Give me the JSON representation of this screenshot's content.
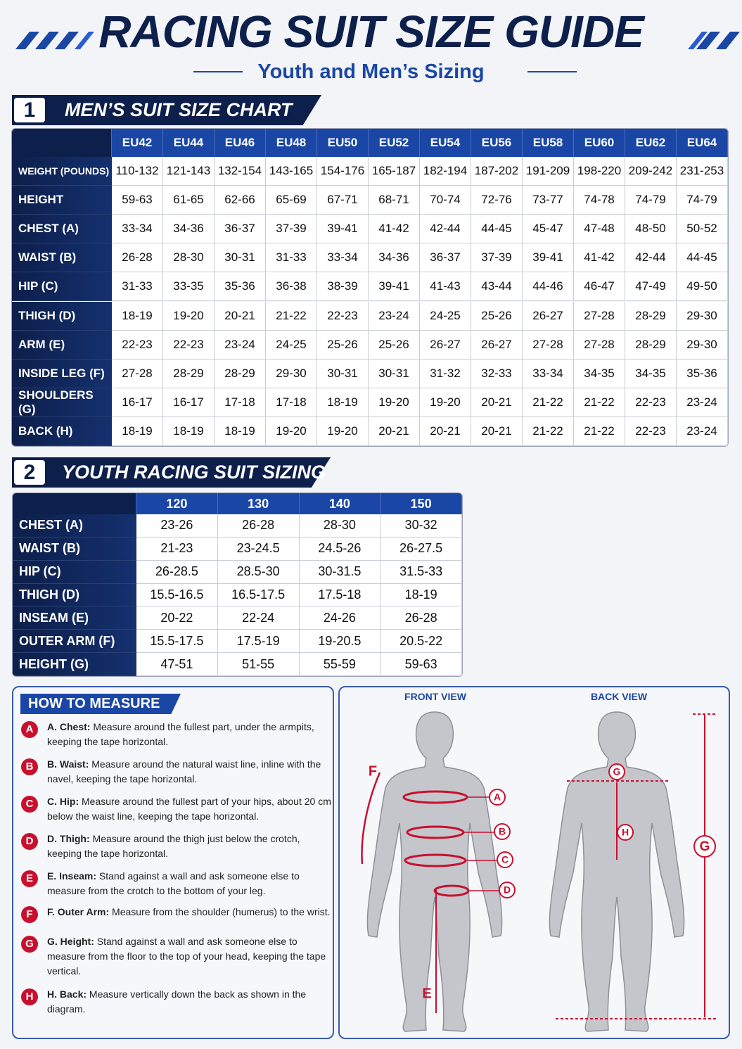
{
  "header": {
    "title": "RACING SUIT SIZE GUIDE",
    "subtitle": "Youth and Men’s Sizing"
  },
  "mens": {
    "number": "1",
    "title": "MEN’S SUIT SIZE CHART",
    "columns": [
      "EU42",
      "EU44",
      "EU46",
      "EU48",
      "EU50",
      "EU52",
      "EU54",
      "EU56",
      "EU58",
      "EU60",
      "EU62",
      "EU64"
    ],
    "rows": [
      {
        "label": "WEIGHT (POUNDS)",
        "cells": [
          "110-132",
          "121-143",
          "132-154",
          "143-165",
          "154-176",
          "165-187",
          "182-194",
          "187-202",
          "191-209",
          "198-220",
          "209-242",
          "231-253"
        ]
      },
      {
        "label": "HEIGHT",
        "cells": [
          "59-63",
          "61-65",
          "62-66",
          "65-69",
          "67-71",
          "68-71",
          "70-74",
          "72-76",
          "73-77",
          "74-78",
          "74-79",
          "74-79"
        ]
      },
      {
        "label": "CHEST (A)",
        "cells": [
          "33-34",
          "34-36",
          "36-37",
          "37-39",
          "39-41",
          "41-42",
          "42-44",
          "44-45",
          "45-47",
          "47-48",
          "48-50",
          "50-52"
        ]
      },
      {
        "label": "WAIST (B)",
        "cells": [
          "26-28",
          "28-30",
          "30-31",
          "31-33",
          "33-34",
          "34-36",
          "36-37",
          "37-39",
          "39-41",
          "41-42",
          "42-44",
          "44-45"
        ]
      },
      {
        "label": "HIP (C)",
        "cells": [
          "31-33",
          "33-35",
          "35-36",
          "36-38",
          "38-39",
          "39-41",
          "41-43",
          "43-44",
          "44-46",
          "46-47",
          "47-49",
          "49-50"
        ]
      },
      {
        "label": "THIGH (D)",
        "cells": [
          "18-19",
          "19-20",
          "20-21",
          "21-22",
          "22-23",
          "23-24",
          "24-25",
          "25-26",
          "26-27",
          "27-28",
          "28-29",
          "29-30"
        ]
      },
      {
        "label": "ARM (E)",
        "cells": [
          "22-23",
          "22-23",
          "23-24",
          "24-25",
          "25-26",
          "25-26",
          "26-27",
          "26-27",
          "27-28",
          "27-28",
          "28-29",
          "29-30"
        ]
      },
      {
        "label": "INSIDE LEG (F)",
        "cells": [
          "27-28",
          "28-29",
          "28-29",
          "29-30",
          "30-31",
          "30-31",
          "31-32",
          "32-33",
          "33-34",
          "34-35",
          "34-35",
          "35-36"
        ]
      },
      {
        "label": "SHOULDERS (G)",
        "cells": [
          "16-17",
          "16-17",
          "17-18",
          "17-18",
          "18-19",
          "19-20",
          "19-20",
          "20-21",
          "21-22",
          "21-22",
          "22-23",
          "23-24"
        ]
      },
      {
        "label": "BACK (H)",
        "cells": [
          "18-19",
          "18-19",
          "18-19",
          "19-20",
          "19-20",
          "20-21",
          "20-21",
          "20-21",
          "21-22",
          "21-22",
          "22-23",
          "23-24"
        ]
      }
    ]
  },
  "youth": {
    "number": "2",
    "title": "YOUTH RACING SUIT SIZING",
    "columns": [
      "120",
      "130",
      "140",
      "150"
    ],
    "rows": [
      {
        "label": "CHEST (A)",
        "cells": [
          "23-26",
          "26-28",
          "28-30",
          "30-32"
        ]
      },
      {
        "label": "WAIST (B)",
        "cells": [
          "21-23",
          "23-24.5",
          "24.5-26",
          "26-27.5"
        ]
      },
      {
        "label": "HIP (C)",
        "cells": [
          "26-28.5",
          "28.5-30",
          "30-31.5",
          "31.5-33"
        ]
      },
      {
        "label": "THIGH (D)",
        "cells": [
          "15.5-16.5",
          "16.5-17.5",
          "17.5-18",
          "18-19"
        ]
      },
      {
        "label": "INSEAM (E)",
        "cells": [
          "20-22",
          "22-24",
          "24-26",
          "26-28"
        ]
      },
      {
        "label": "OUTER ARM (F)",
        "cells": [
          "15.5-17.5",
          "17.5-19",
          "19-20.5",
          "20.5-22"
        ]
      },
      {
        "label": "HEIGHT (G)",
        "cells": [
          "47-51",
          "51-55",
          "55-59",
          "59-63"
        ]
      }
    ]
  },
  "measure": {
    "title": "HOW TO MEASURE",
    "items": [
      {
        "letter": "A",
        "term": "A. Chest:",
        "text": "Measure around the fullest part, under the armpits, keeping the tape horizontal."
      },
      {
        "letter": "B",
        "term": "B. Waist:",
        "text": "Measure around the natural waist line, inline with the navel, keeping the tape horizontal."
      },
      {
        "letter": "C",
        "term": "C. Hip:",
        "text": "Measure around the fullest part of your hips, about 20 cm below the waist line, keeping the tape horizontal."
      },
      {
        "letter": "D",
        "term": "D. Thigh:",
        "text": "Measure around the thigh just below the crotch, keeping the tape horizontal."
      },
      {
        "letter": "E",
        "term": "E. Inseam:",
        "text": "Stand against a wall and ask someone else to measure from the crotch to the bottom of your leg."
      },
      {
        "letter": "F",
        "term": "F. Outer Arm:",
        "text": "Measure from the shoulder (humerus) to the wrist."
      },
      {
        "letter": "G",
        "term": "G. Height:",
        "text": "Stand against a wall and ask someone else to measure from the floor to the top of your head, keeping the tape vertical."
      },
      {
        "letter": "H",
        "term": "H. Back:",
        "text": "Measure vertically down the back as shown in the diagram."
      }
    ]
  },
  "diagram": {
    "front_label": "FRONT VIEW",
    "back_label": "BACK VIEW",
    "front_markers": [
      "F",
      "A",
      "B",
      "C",
      "D",
      "E"
    ],
    "back_markers": [
      "G",
      "H",
      "G"
    ]
  }
}
